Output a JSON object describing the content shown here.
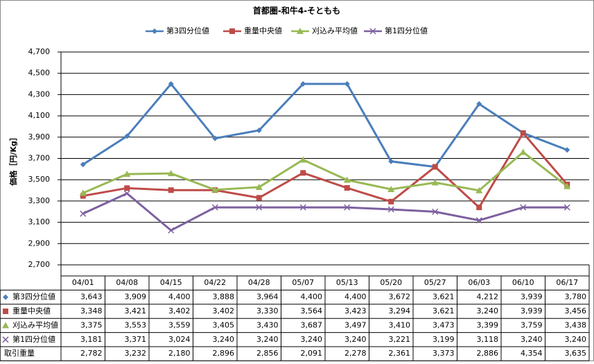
{
  "chart_data": {
    "type": "line",
    "title": "首都圏-和牛4-そともも",
    "ylabel": "価格［円/Kg］",
    "categories": [
      "04/01",
      "04/08",
      "04/15",
      "04/22",
      "04/28",
      "05/07",
      "05/13",
      "05/20",
      "05/27",
      "06/03",
      "06/10",
      "06/17"
    ],
    "series": [
      {
        "name": "第3四分位値",
        "color": "#4a7ebb",
        "marker": "diamond",
        "values": [
          3643,
          3909,
          4400,
          3888,
          3964,
          4400,
          4400,
          3672,
          3621,
          4212,
          3939,
          3780
        ],
        "value_labels": [
          "3,643",
          "3,909",
          "4,400",
          "3,888",
          "3,964",
          "4,400",
          "4,400",
          "3,672",
          "3,621",
          "4,212",
          "3,939",
          "3,780"
        ]
      },
      {
        "name": "重量中央値",
        "color": "#be4b48",
        "marker": "square",
        "values": [
          3348,
          3421,
          3402,
          3402,
          3330,
          3564,
          3423,
          3294,
          3621,
          3240,
          3939,
          3456
        ],
        "value_labels": [
          "3,348",
          "3,421",
          "3,402",
          "3,402",
          "3,330",
          "3,564",
          "3,423",
          "3,294",
          "3,621",
          "3,240",
          "3,939",
          "3,456"
        ]
      },
      {
        "name": "刈込み平均値",
        "color": "#98b954",
        "marker": "triangle",
        "values": [
          3375,
          3553,
          3559,
          3405,
          3430,
          3687,
          3497,
          3410,
          3473,
          3399,
          3759,
          3438
        ],
        "value_labels": [
          "3,375",
          "3,553",
          "3,559",
          "3,405",
          "3,430",
          "3,687",
          "3,497",
          "3,410",
          "3,473",
          "3,399",
          "3,759",
          "3,438"
        ]
      },
      {
        "name": "第1四分位値",
        "color": "#7d60a0",
        "marker": "x",
        "values": [
          3181,
          3371,
          3024,
          3240,
          3240,
          3240,
          3240,
          3221,
          3199,
          3118,
          3240,
          3240
        ],
        "value_labels": [
          "3,181",
          "3,371",
          "3,024",
          "3,240",
          "3,240",
          "3,240",
          "3,240",
          "3,221",
          "3,199",
          "3,118",
          "3,240",
          "3,240"
        ]
      }
    ],
    "table_rows": [
      {
        "name": "取引重量",
        "values": [
          2782,
          3232,
          2180,
          2896,
          2856,
          2091,
          2278,
          2361,
          3373,
          2886,
          4354,
          3635
        ],
        "value_labels": [
          "2,782",
          "3,232",
          "2,180",
          "2,896",
          "2,856",
          "2,091",
          "2,278",
          "2,361",
          "3,373",
          "2,886",
          "4,354",
          "3,635"
        ]
      }
    ],
    "ylim": [
      2700,
      4700
    ],
    "yticks": [
      {
        "value": 2700,
        "label": "2,700"
      },
      {
        "value": 2900,
        "label": "2,900"
      },
      {
        "value": 3100,
        "label": "3,100"
      },
      {
        "value": 3300,
        "label": "3,300"
      },
      {
        "value": 3500,
        "label": "3,500"
      },
      {
        "value": 3700,
        "label": "3,700"
      },
      {
        "value": 3900,
        "label": "3,900"
      },
      {
        "value": 4100,
        "label": "4,100"
      },
      {
        "value": 4300,
        "label": "4,300"
      },
      {
        "value": 4500,
        "label": "4,500"
      },
      {
        "value": 4700,
        "label": "4,700"
      }
    ],
    "grid": true,
    "legend": "top"
  }
}
